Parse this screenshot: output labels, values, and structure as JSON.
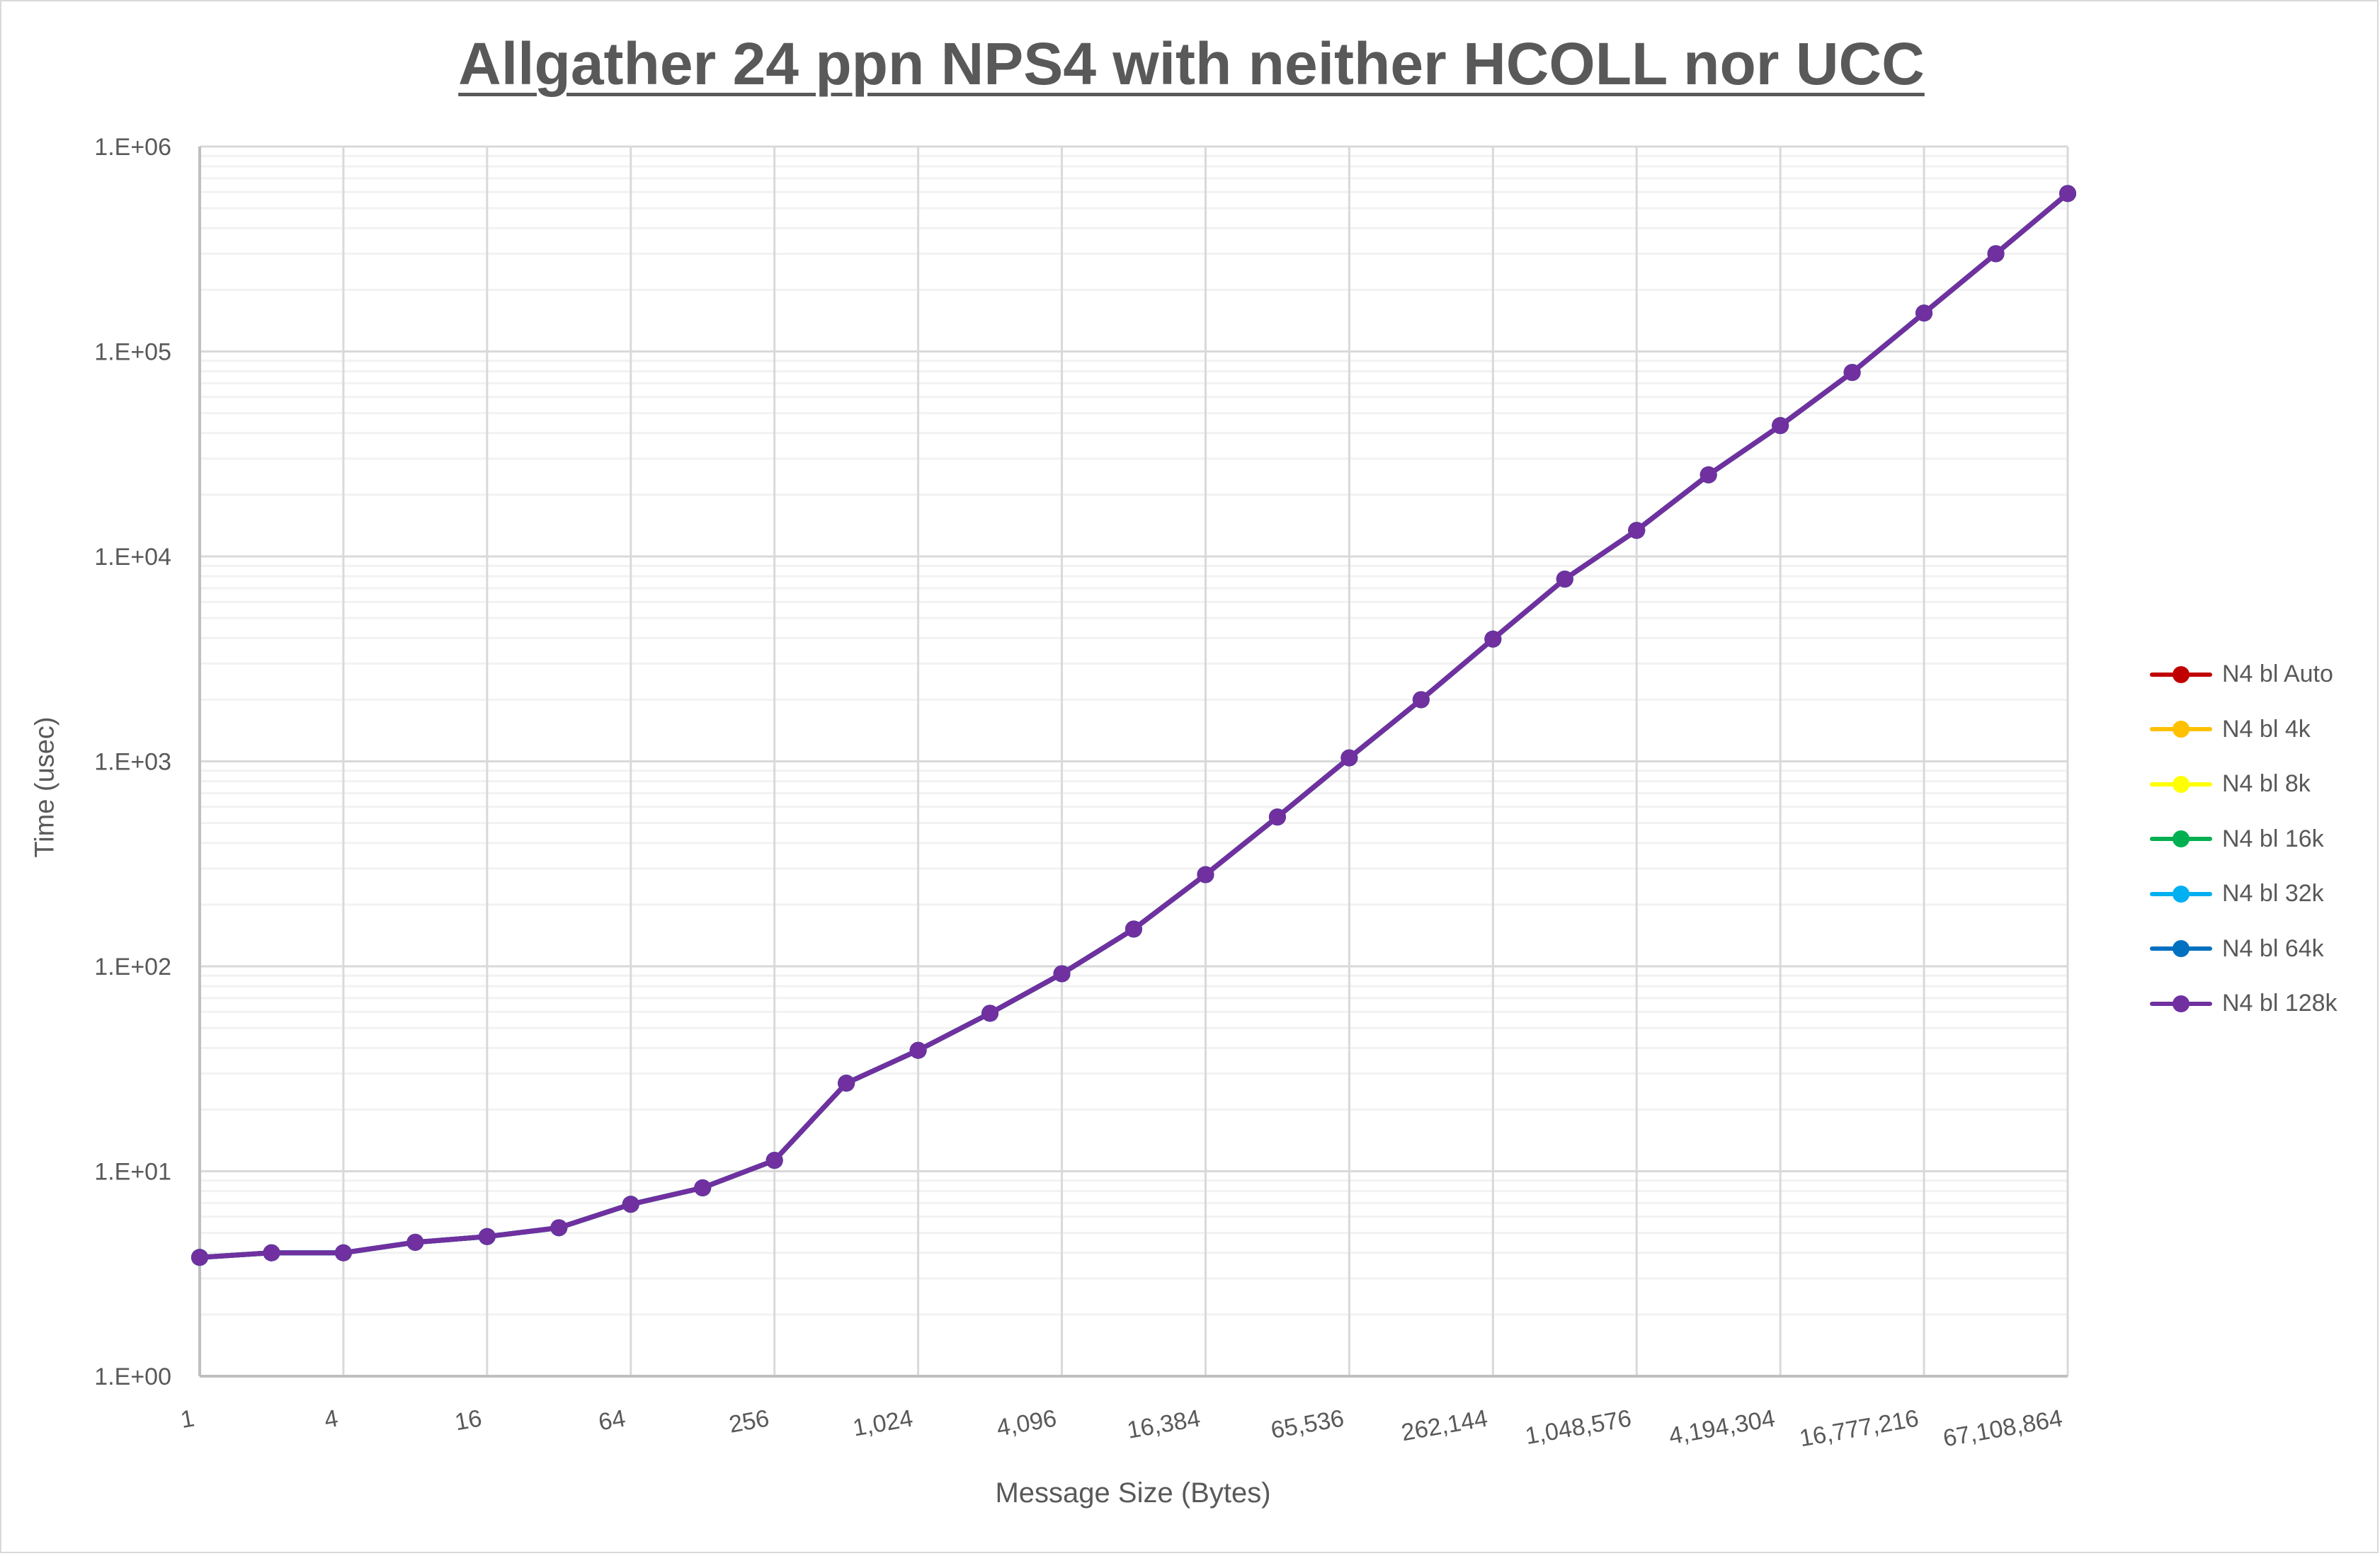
{
  "chart_data": {
    "type": "line",
    "title": "Allgather 24 ppn NPS4 with neither HCOLL nor UCC",
    "xlabel": "Message Size (Bytes)",
    "ylabel": "Time (usec)",
    "x_scale": "log2",
    "y_scale": "log10",
    "ylim": [
      1,
      1000000
    ],
    "grid": true,
    "legend_position": "right",
    "y_tick_labels": [
      "1.E+00",
      "1.E+01",
      "1.E+02",
      "1.E+03",
      "1.E+04",
      "1.E+05",
      "1.E+06"
    ],
    "x_tick_labels": [
      "1",
      "4",
      "16",
      "64",
      "256",
      "1,024",
      "4,096",
      "16,384",
      "65,536",
      "262,144",
      "1,048,576",
      "4,194,304",
      "16,777,216",
      "67,108,864"
    ],
    "x": [
      1,
      2,
      4,
      8,
      16,
      32,
      64,
      128,
      256,
      512,
      1024,
      2048,
      4096,
      8192,
      16384,
      32768,
      65536,
      131072,
      262144,
      524288,
      1048576,
      2097152,
      4194304,
      8388608,
      16777216,
      33554432,
      67108864
    ],
    "series": [
      {
        "name": "N4 bl Auto",
        "color": "#c00000",
        "values": [
          3.8,
          4.0,
          4.0,
          4.5,
          4.8,
          5.3,
          6.9,
          8.3,
          11.3,
          26.9,
          38.9,
          59,
          92,
          152,
          280,
          535,
          1040,
          2000,
          3950,
          7750,
          13400,
          25000,
          43500,
          79000,
          154000,
          300000,
          590000
        ]
      },
      {
        "name": "N4 bl 4k",
        "color": "#ffc000",
        "values": [
          3.8,
          4.0,
          4.0,
          4.5,
          4.8,
          5.3,
          6.9,
          8.3,
          11.3,
          26.9,
          38.9,
          59,
          92,
          152,
          280,
          535,
          1040,
          2000,
          3950,
          7750,
          13400,
          25000,
          43500,
          79000,
          154000,
          300000,
          590000
        ]
      },
      {
        "name": "N4 bl 8k",
        "color": "#ffff00",
        "values": [
          3.8,
          4.0,
          4.0,
          4.5,
          4.8,
          5.3,
          6.9,
          8.3,
          11.3,
          26.9,
          38.9,
          59,
          92,
          152,
          280,
          535,
          1040,
          2000,
          3950,
          7750,
          13400,
          25000,
          43500,
          79000,
          154000,
          300000,
          590000
        ]
      },
      {
        "name": "N4 bl 16k",
        "color": "#00b050",
        "values": [
          3.8,
          4.0,
          4.0,
          4.5,
          4.8,
          5.3,
          6.9,
          8.3,
          11.3,
          26.9,
          38.9,
          59,
          92,
          152,
          280,
          535,
          1040,
          2000,
          3950,
          7750,
          13400,
          25000,
          43500,
          79000,
          154000,
          300000,
          590000
        ]
      },
      {
        "name": "N4 bl 32k",
        "color": "#00b0f0",
        "values": [
          3.8,
          4.0,
          4.0,
          4.5,
          4.8,
          5.3,
          6.9,
          8.3,
          11.3,
          26.9,
          38.9,
          59,
          92,
          152,
          280,
          535,
          1040,
          2000,
          3950,
          7750,
          13400,
          25000,
          43500,
          79000,
          154000,
          300000,
          590000
        ]
      },
      {
        "name": "N4 bl 64k",
        "color": "#0070c0",
        "values": [
          3.8,
          4.0,
          4.0,
          4.5,
          4.8,
          5.3,
          6.9,
          8.3,
          11.3,
          26.9,
          38.9,
          59,
          92,
          152,
          280,
          535,
          1040,
          2000,
          3950,
          7750,
          13400,
          25000,
          43500,
          79000,
          154000,
          300000,
          590000
        ]
      },
      {
        "name": "N4 bl 128k",
        "color": "#7030a0",
        "values": [
          3.8,
          4.0,
          4.0,
          4.5,
          4.8,
          5.3,
          6.9,
          8.3,
          11.3,
          26.9,
          38.9,
          59,
          92,
          152,
          280,
          535,
          1040,
          2000,
          3950,
          7750,
          13400,
          25000,
          43500,
          79000,
          154000,
          300000,
          590000
        ]
      }
    ]
  }
}
